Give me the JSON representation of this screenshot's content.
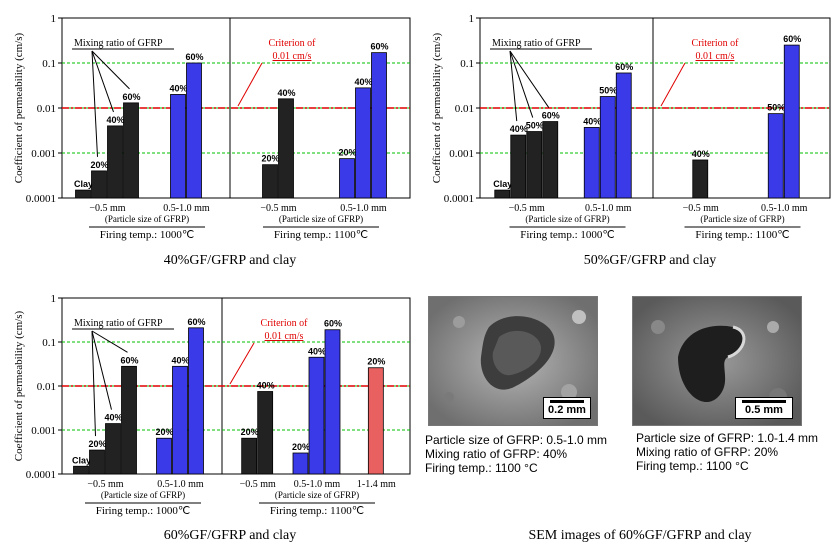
{
  "chart_data": [
    {
      "id": "chart40",
      "type": "bar",
      "title": "40%GF/GFRP and clay",
      "ylabel": "Coefficient of permeability (cm/s)",
      "yscale": "log",
      "ylim": [
        0.0001,
        1
      ],
      "yticks": [
        "1",
        "0.1",
        "0.01",
        "0.001",
        "0.0001"
      ],
      "criterion": {
        "value": 0.01,
        "label_line1": "Criterion of",
        "label_line2": "0.01 cm/s"
      },
      "mixing_label": "Mixing ratio of GFRP",
      "panels": [
        {
          "firing_temp": "Firing temp.: 1000℃",
          "groups": [
            {
              "label": "−0.5 mm",
              "sublabel": "(Particle size of GFRP)",
              "bars": [
                {
                  "label": "Clay",
                  "value": 0.00015,
                  "color": "black"
                },
                {
                  "label": "20%",
                  "value": 0.0004,
                  "color": "black"
                },
                {
                  "label": "40%",
                  "value": 0.004,
                  "color": "black"
                },
                {
                  "label": "60%",
                  "value": 0.013,
                  "color": "black"
                }
              ]
            },
            {
              "label": "0.5-1.0 mm",
              "sublabel": "",
              "bars": [
                {
                  "label": "40%",
                  "value": 0.02,
                  "color": "blue"
                },
                {
                  "label": "60%",
                  "value": 0.1,
                  "color": "blue"
                }
              ]
            }
          ]
        },
        {
          "firing_temp": "Firing temp.: 1100℃",
          "groups": [
            {
              "label": "−0.5 mm",
              "sublabel": "",
              "bars": [
                {
                  "label": "20%",
                  "value": 0.00055,
                  "color": "black"
                },
                {
                  "label": "40%",
                  "value": 0.016,
                  "color": "black"
                }
              ]
            },
            {
              "label": "0.5-1.0 mm",
              "sublabel": "(Particle size of GFRP)",
              "bars": [
                {
                  "label": "20%",
                  "value": 0.00075,
                  "color": "blue"
                },
                {
                  "label": "40%",
                  "value": 0.028,
                  "color": "blue"
                },
                {
                  "label": "60%",
                  "value": 0.17,
                  "color": "blue"
                }
              ]
            }
          ]
        }
      ]
    },
    {
      "id": "chart50",
      "type": "bar",
      "title": "50%GF/GFRP and clay",
      "ylabel": "Coefficient of permeability (cm/s)",
      "yscale": "log",
      "ylim": [
        0.0001,
        1
      ],
      "yticks": [
        "1",
        "0.1",
        "0.01",
        "0.001",
        "0.0001"
      ],
      "criterion": {
        "value": 0.01,
        "label_line1": "Criterion of",
        "label_line2": "0.01 cm/s"
      },
      "mixing_label": "Mixing ratio of GFRP",
      "panels": [
        {
          "firing_temp": "Firing temp.: 1000℃",
          "groups": [
            {
              "label": "−0.5 mm",
              "sublabel": "(Particle size of GFRP)",
              "bars": [
                {
                  "label": "Clay",
                  "value": 0.00015,
                  "color": "black"
                },
                {
                  "label": "40%",
                  "value": 0.0025,
                  "color": "black"
                },
                {
                  "label": "50%",
                  "value": 0.003,
                  "color": "black"
                },
                {
                  "label": "60%",
                  "value": 0.005,
                  "color": "black"
                }
              ]
            },
            {
              "label": "0.5-1.0 mm",
              "sublabel": "",
              "bars": [
                {
                  "label": "40%",
                  "value": 0.0037,
                  "color": "blue"
                },
                {
                  "label": "50%",
                  "value": 0.018,
                  "color": "blue"
                },
                {
                  "label": "60%",
                  "value": 0.06,
                  "color": "blue"
                }
              ]
            }
          ]
        },
        {
          "firing_temp": "Firing temp.: 1100℃",
          "groups": [
            {
              "label": "−0.5 mm",
              "sublabel": "",
              "bars": [
                {
                  "label": "40%",
                  "value": 0.0007,
                  "color": "black"
                }
              ]
            },
            {
              "label": "0.5-1.0 mm",
              "sublabel": "(Particle size of GFRP)",
              "bars": [
                {
                  "label": "50%",
                  "value": 0.0075,
                  "color": "blue"
                },
                {
                  "label": "60%",
                  "value": 0.25,
                  "color": "blue"
                }
              ]
            }
          ]
        }
      ]
    },
    {
      "id": "chart60",
      "type": "bar",
      "title": "60%GF/GFRP and clay",
      "ylabel": "Coefficient of permeability (cm/s)",
      "yscale": "log",
      "ylim": [
        0.0001,
        1
      ],
      "yticks": [
        "1",
        "0.1",
        "0.01",
        "0.001",
        "0.0001"
      ],
      "criterion": {
        "value": 0.01,
        "label_line1": "Criterion of",
        "label_line2": "0.01 cm/s"
      },
      "mixing_label": "Mixing ratio of GFRP",
      "panels": [
        {
          "firing_temp": "Firing temp.: 1000℃",
          "groups": [
            {
              "label": "−0.5 mm",
              "sublabel": "(Particle size of GFRP)",
              "bars": [
                {
                  "label": "Clay",
                  "value": 0.00015,
                  "color": "black"
                },
                {
                  "label": "20%",
                  "value": 0.00035,
                  "color": "black"
                },
                {
                  "label": "40%",
                  "value": 0.0014,
                  "color": "black"
                },
                {
                  "label": "60%",
                  "value": 0.028,
                  "color": "black"
                }
              ]
            },
            {
              "label": "0.5-1.0 mm",
              "sublabel": "",
              "bars": [
                {
                  "label": "20%",
                  "value": 0.00065,
                  "color": "blue"
                },
                {
                  "label": "40%",
                  "value": 0.028,
                  "color": "blue"
                },
                {
                  "label": "60%",
                  "value": 0.21,
                  "color": "blue"
                }
              ]
            }
          ]
        },
        {
          "firing_temp": "Firing temp.: 1100℃",
          "groups": [
            {
              "label": "−0.5 mm",
              "sublabel": "",
              "bars": [
                {
                  "label": "20%",
                  "value": 0.00065,
                  "color": "black"
                },
                {
                  "label": "40%",
                  "value": 0.0075,
                  "color": "black"
                }
              ]
            },
            {
              "label": "0.5-1.0 mm",
              "sublabel": "(Particle size of GFRP)",
              "bars": [
                {
                  "label": "20%",
                  "value": 0.0003,
                  "color": "blue"
                },
                {
                  "label": "40%",
                  "value": 0.045,
                  "color": "blue"
                },
                {
                  "label": "60%",
                  "value": 0.19,
                  "color": "blue"
                }
              ]
            },
            {
              "label": "1-1.4 mm",
              "sublabel": "",
              "bars": [
                {
                  "label": "20%",
                  "value": 0.026,
                  "color": "red"
                }
              ]
            }
          ]
        }
      ]
    }
  ],
  "sem": {
    "title": "SEM images of 60%GF/GFRP and clay",
    "images": [
      {
        "scale": "0.2 mm",
        "line1": "Particle size of GFRP: 0.5-1.0 mm",
        "line2": "Mixing ratio of GFRP: 40%",
        "line3": "Firing temp.: 1100 °C"
      },
      {
        "scale": "0.5 mm",
        "line1": "Particle size of GFRP: 1.0-1.4 mm",
        "line2": "Mixing ratio of GFRP: 20%",
        "line3": "Firing temp.: 1100 °C"
      }
    ]
  },
  "colors": {
    "black_bar": "#222222",
    "blue_bar": "#3a3ae8",
    "red_bar": "#e86060",
    "criterion": "#e00000",
    "gridline": "#00c000"
  }
}
